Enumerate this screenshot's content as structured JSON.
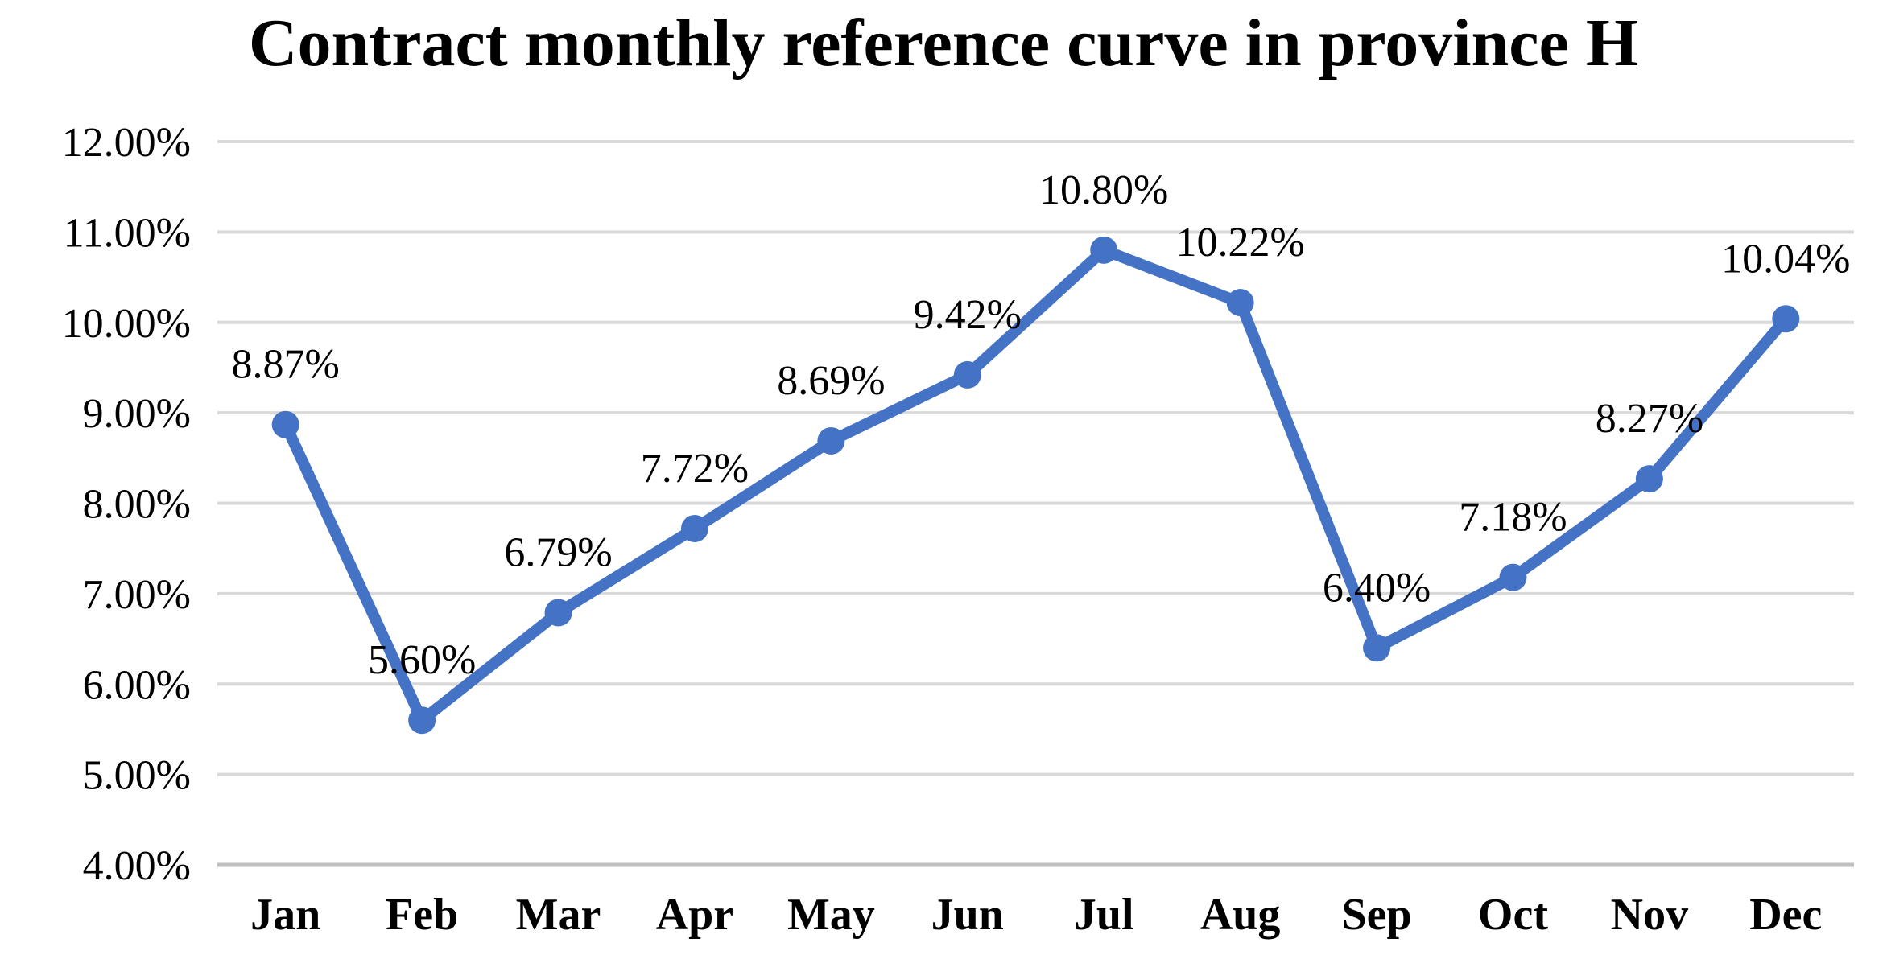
{
  "title": "Contract monthly reference curve in province H",
  "chart_data": {
    "type": "line",
    "title": "Contract monthly reference curve in province H",
    "categories": [
      "Jan",
      "Feb",
      "Mar",
      "Apr",
      "May",
      "Jun",
      "Jul",
      "Aug",
      "Sep",
      "Oct",
      "Nov",
      "Dec"
    ],
    "series": [
      {
        "name": "Contract monthly reference",
        "values": [
          8.87,
          5.6,
          6.79,
          7.72,
          8.69,
          9.42,
          10.8,
          10.22,
          6.4,
          7.18,
          8.27,
          10.04
        ]
      }
    ],
    "point_labels": [
      "8.87%",
      "5.60%",
      "6.79%",
      "7.72%",
      "8.69%",
      "9.42%",
      "10.80%",
      "10.22%",
      "6.40%",
      "7.18%",
      "8.27%",
      "10.04%"
    ],
    "xlabel": "",
    "ylabel": "",
    "ylim": [
      4,
      12
    ],
    "y_tick_step": 1,
    "y_tick_labels": [
      "12.00%",
      "11.00%",
      "10.00%",
      "9.00%",
      "8.00%",
      "7.00%",
      "6.00%",
      "5.00%",
      "4.00%"
    ],
    "grid": true,
    "legend_position": "none",
    "marker": "circle",
    "colors": {
      "line": "#4472C4",
      "marker": "#4472C4",
      "gridline": "#D9D9D9",
      "axis_line": "#BFBFBF",
      "text": "#000000",
      "background": "#FFFFFF"
    }
  }
}
